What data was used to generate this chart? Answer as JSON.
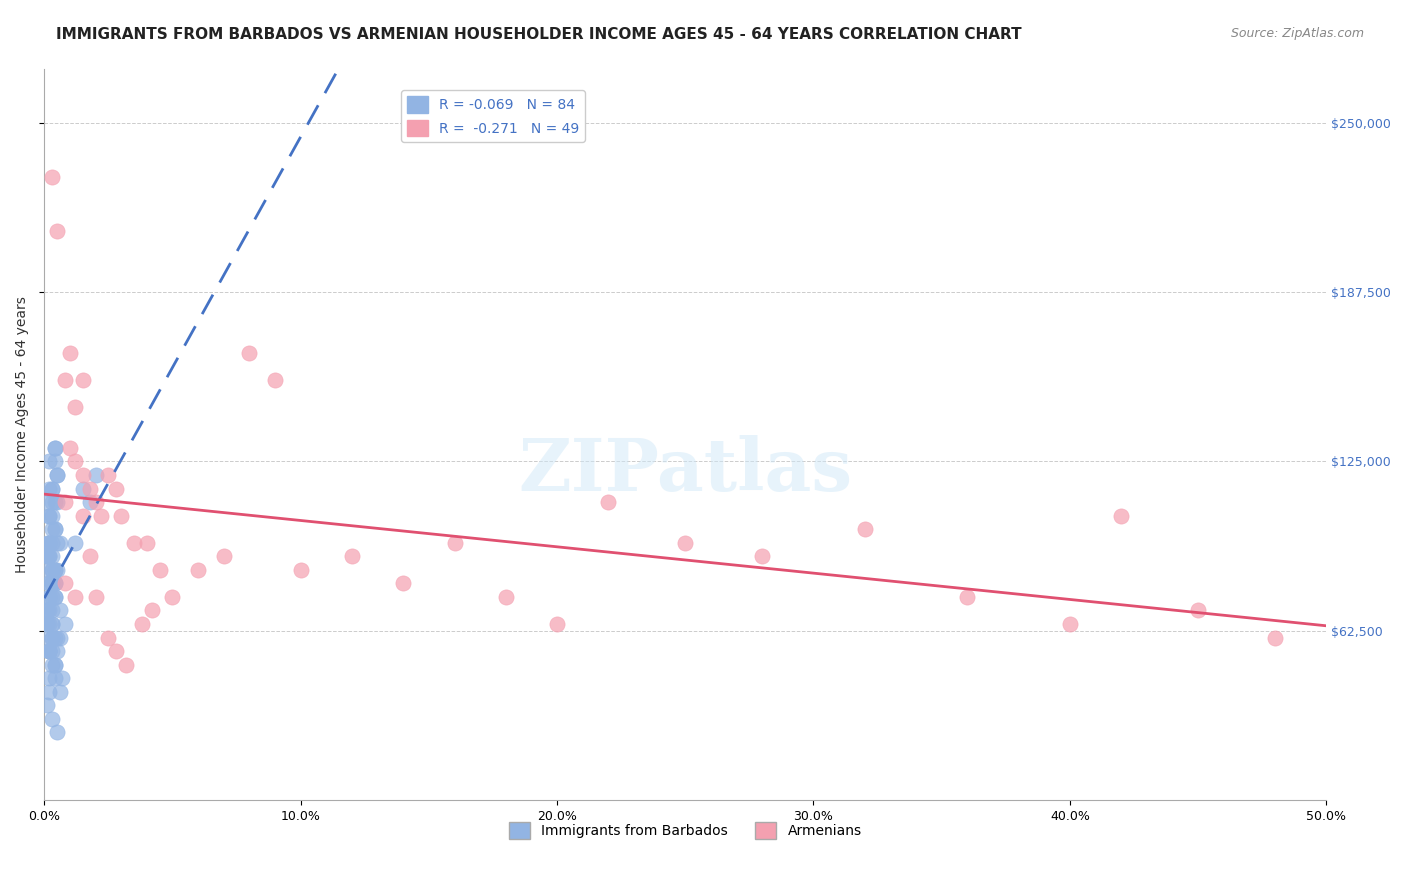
{
  "title": "IMMIGRANTS FROM BARBADOS VS ARMENIAN HOUSEHOLDER INCOME AGES 45 - 64 YEARS CORRELATION CHART",
  "source": "Source: ZipAtlas.com",
  "xlabel_ticks": [
    "0.0%",
    "10.0%",
    "20.0%",
    "30.0%",
    "40.0%",
    "50.0%"
  ],
  "xlabel_vals": [
    0.0,
    0.1,
    0.2,
    0.3,
    0.4,
    0.5
  ],
  "ylabel_ticks": [
    "$62,500",
    "$125,000",
    "$187,500",
    "$250,000"
  ],
  "ylabel_vals": [
    62500,
    125000,
    187500,
    250000
  ],
  "xmin": 0.0,
  "xmax": 0.5,
  "ymin": 0,
  "ymax": 270000,
  "barbados_r": "-0.069",
  "barbados_n": "84",
  "armenian_r": "-0.271",
  "armenian_n": "49",
  "barbados_color": "#92b4e3",
  "armenian_color": "#f4a0b0",
  "barbados_line_color": "#4472c4",
  "armenian_line_color": "#e05070",
  "watermark": "ZIPatlas",
  "title_fontsize": 11,
  "source_fontsize": 9,
  "axis_label_fontsize": 10,
  "tick_fontsize": 9,
  "barbados_x": [
    0.002,
    0.003,
    0.004,
    0.002,
    0.001,
    0.003,
    0.005,
    0.002,
    0.004,
    0.003,
    0.006,
    0.004,
    0.002,
    0.003,
    0.001,
    0.002,
    0.004,
    0.003,
    0.005,
    0.002,
    0.003,
    0.004,
    0.002,
    0.001,
    0.003,
    0.005,
    0.002,
    0.004,
    0.003,
    0.006,
    0.007,
    0.004,
    0.002,
    0.003,
    0.001,
    0.002,
    0.004,
    0.003,
    0.005,
    0.002,
    0.003,
    0.004,
    0.002,
    0.001,
    0.003,
    0.005,
    0.002,
    0.004,
    0.008,
    0.006,
    0.002,
    0.003,
    0.004,
    0.002,
    0.001,
    0.003,
    0.005,
    0.002,
    0.004,
    0.003,
    0.006,
    0.004,
    0.002,
    0.003,
    0.001,
    0.002,
    0.004,
    0.003,
    0.005,
    0.002,
    0.003,
    0.004,
    0.002,
    0.001,
    0.015,
    0.02,
    0.018,
    0.012,
    0.003,
    0.004,
    0.002,
    0.001,
    0.003,
    0.005
  ],
  "barbados_y": [
    95000,
    110000,
    125000,
    105000,
    90000,
    115000,
    120000,
    85000,
    130000,
    100000,
    95000,
    110000,
    80000,
    75000,
    70000,
    65000,
    85000,
    90000,
    95000,
    60000,
    70000,
    80000,
    75000,
    65000,
    60000,
    55000,
    45000,
    50000,
    55000,
    40000,
    45000,
    50000,
    55000,
    60000,
    65000,
    70000,
    75000,
    80000,
    85000,
    90000,
    95000,
    100000,
    105000,
    110000,
    115000,
    120000,
    125000,
    130000,
    65000,
    60000,
    55000,
    50000,
    45000,
    40000,
    35000,
    30000,
    25000,
    55000,
    60000,
    65000,
    70000,
    75000,
    80000,
    85000,
    90000,
    95000,
    100000,
    105000,
    110000,
    115000,
    80000,
    85000,
    90000,
    95000,
    115000,
    120000,
    110000,
    95000,
    85000,
    80000,
    75000,
    70000,
    65000,
    60000
  ],
  "armenian_x": [
    0.003,
    0.005,
    0.008,
    0.01,
    0.012,
    0.015,
    0.008,
    0.01,
    0.012,
    0.015,
    0.018,
    0.02,
    0.022,
    0.025,
    0.028,
    0.03,
    0.035,
    0.04,
    0.045,
    0.05,
    0.06,
    0.07,
    0.08,
    0.09,
    0.1,
    0.12,
    0.14,
    0.16,
    0.18,
    0.2,
    0.22,
    0.25,
    0.28,
    0.32,
    0.36,
    0.4,
    0.42,
    0.45,
    0.48,
    0.008,
    0.012,
    0.015,
    0.018,
    0.02,
    0.025,
    0.028,
    0.032,
    0.038,
    0.042
  ],
  "armenian_y": [
    230000,
    210000,
    155000,
    165000,
    145000,
    155000,
    110000,
    130000,
    125000,
    120000,
    115000,
    110000,
    105000,
    120000,
    115000,
    105000,
    95000,
    95000,
    85000,
    75000,
    85000,
    90000,
    165000,
    155000,
    85000,
    90000,
    80000,
    95000,
    75000,
    65000,
    110000,
    95000,
    90000,
    100000,
    75000,
    65000,
    105000,
    70000,
    60000,
    80000,
    75000,
    105000,
    90000,
    75000,
    60000,
    55000,
    50000,
    65000,
    70000
  ]
}
